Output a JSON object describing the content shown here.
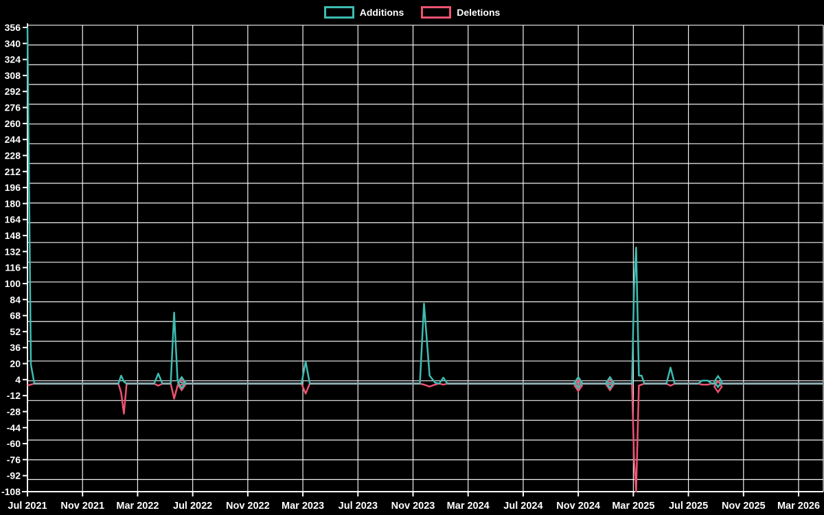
{
  "legend": {
    "items": [
      {
        "label": "Additions"
      },
      {
        "label": "Deletions"
      }
    ]
  },
  "colors": {
    "background": "#000000",
    "grid": "#f2f2f2",
    "axis": "#ffffff",
    "text": "#ffffff",
    "additions": "#3dbdb2",
    "deletions": "#ef5371",
    "baseline_overlap": "#8fadb3"
  },
  "chart_data": {
    "type": "line",
    "title": "",
    "xlabel": "",
    "ylabel": "",
    "legend_position": "top-center",
    "grid": "on",
    "x_unit": "months_since_jul_2021",
    "x_range": [
      0,
      57.8
    ],
    "ylim": [
      -108,
      356
    ],
    "y_tick_step": 16,
    "y_ticks": [
      356,
      340,
      324,
      308,
      292,
      276,
      260,
      244,
      228,
      212,
      196,
      180,
      164,
      148,
      132,
      116,
      100,
      84,
      68,
      52,
      36,
      20,
      4,
      -12,
      -28,
      -44,
      -60,
      -76,
      -92,
      -108
    ],
    "x_ticks": [
      {
        "month": 0,
        "label": "Jul 2021"
      },
      {
        "month": 4,
        "label": "Nov 2021"
      },
      {
        "month": 8,
        "label": "Mar 2022"
      },
      {
        "month": 12,
        "label": "Jul 2022"
      },
      {
        "month": 16,
        "label": "Nov 2022"
      },
      {
        "month": 20,
        "label": "Mar 2023"
      },
      {
        "month": 24,
        "label": "Jul 2023"
      },
      {
        "month": 28,
        "label": "Nov 2023"
      },
      {
        "month": 32,
        "label": "Mar 2024"
      },
      {
        "month": 36,
        "label": "Jul 2024"
      },
      {
        "month": 40,
        "label": "Nov 2024"
      },
      {
        "month": 44,
        "label": "Mar 2025"
      },
      {
        "month": 48,
        "label": "Jul 2025"
      },
      {
        "month": 52,
        "label": "Nov 2025"
      },
      {
        "month": 56,
        "label": "Mar 2026"
      }
    ],
    "series": [
      {
        "name": "Additions",
        "color": "#3dbdb2",
        "points": [
          [
            0,
            356
          ],
          [
            0.25,
            19
          ],
          [
            0.5,
            0
          ],
          [
            6.6,
            0
          ],
          [
            6.8,
            8
          ],
          [
            7.0,
            2
          ],
          [
            7.2,
            0
          ],
          [
            9.2,
            0
          ],
          [
            9.5,
            10
          ],
          [
            9.8,
            0
          ],
          [
            10.4,
            0
          ],
          [
            10.65,
            71
          ],
          [
            10.9,
            3
          ],
          [
            11.2,
            1
          ],
          [
            11.5,
            0
          ],
          [
            19.9,
            0
          ],
          [
            20.2,
            22
          ],
          [
            20.5,
            0
          ],
          [
            28.5,
            0
          ],
          [
            28.8,
            80
          ],
          [
            29.2,
            8
          ],
          [
            29.6,
            1
          ],
          [
            29.9,
            0
          ],
          [
            30.2,
            6
          ],
          [
            30.5,
            0
          ],
          [
            39.7,
            0
          ],
          [
            40,
            1
          ],
          [
            40.3,
            0
          ],
          [
            42,
            0
          ],
          [
            42.3,
            1
          ],
          [
            42.6,
            0
          ],
          [
            43.9,
            0
          ],
          [
            44.05,
            97
          ],
          [
            44.2,
            136
          ],
          [
            44.4,
            8
          ],
          [
            44.6,
            8
          ],
          [
            44.8,
            0
          ],
          [
            46.4,
            0
          ],
          [
            46.7,
            16
          ],
          [
            47,
            0
          ],
          [
            48.7,
            0
          ],
          [
            49,
            3
          ],
          [
            49.4,
            3
          ],
          [
            49.7,
            0
          ],
          [
            49.9,
            0
          ],
          [
            50.15,
            2
          ],
          [
            50.4,
            0
          ],
          [
            57.8,
            0
          ]
        ]
      },
      {
        "name": "Deletions",
        "color": "#ef5371",
        "points": [
          [
            0,
            -2
          ],
          [
            0.25,
            -1
          ],
          [
            0.5,
            0
          ],
          [
            6.6,
            0
          ],
          [
            6.8,
            -9
          ],
          [
            7.0,
            -30
          ],
          [
            7.2,
            0
          ],
          [
            9.2,
            0
          ],
          [
            9.5,
            -2
          ],
          [
            9.8,
            0
          ],
          [
            10.4,
            0
          ],
          [
            10.65,
            -15
          ],
          [
            10.9,
            -2
          ],
          [
            11.2,
            -1
          ],
          [
            11.5,
            0
          ],
          [
            19.9,
            0
          ],
          [
            20.2,
            -10
          ],
          [
            20.5,
            0
          ],
          [
            28.5,
            0
          ],
          [
            28.8,
            -1
          ],
          [
            29.2,
            -3
          ],
          [
            29.6,
            -1
          ],
          [
            29.9,
            0
          ],
          [
            30.2,
            -1
          ],
          [
            30.5,
            0
          ],
          [
            39.7,
            0
          ],
          [
            40,
            -2
          ],
          [
            40.3,
            0
          ],
          [
            42,
            0
          ],
          [
            42.3,
            -1
          ],
          [
            42.6,
            0
          ],
          [
            43.9,
            0
          ],
          [
            44.05,
            -76
          ],
          [
            44.2,
            -108
          ],
          [
            44.4,
            -2
          ],
          [
            44.6,
            -1
          ],
          [
            44.8,
            0
          ],
          [
            46.4,
            0
          ],
          [
            46.7,
            -2
          ],
          [
            47,
            0
          ],
          [
            48.7,
            0
          ],
          [
            49,
            -1
          ],
          [
            49.4,
            -1
          ],
          [
            49.7,
            0
          ],
          [
            49.9,
            0
          ],
          [
            50.15,
            -3
          ],
          [
            50.4,
            0
          ],
          [
            57.8,
            0
          ]
        ]
      }
    ],
    "diamond_markers": [
      {
        "month": 11.2,
        "additions": 1,
        "deletions": -1
      },
      {
        "month": 40.0,
        "additions": 1,
        "deletions": -2
      },
      {
        "month": 42.3,
        "additions": 1,
        "deletions": -1
      },
      {
        "month": 50.15,
        "additions": 2,
        "deletions": -3
      }
    ]
  }
}
